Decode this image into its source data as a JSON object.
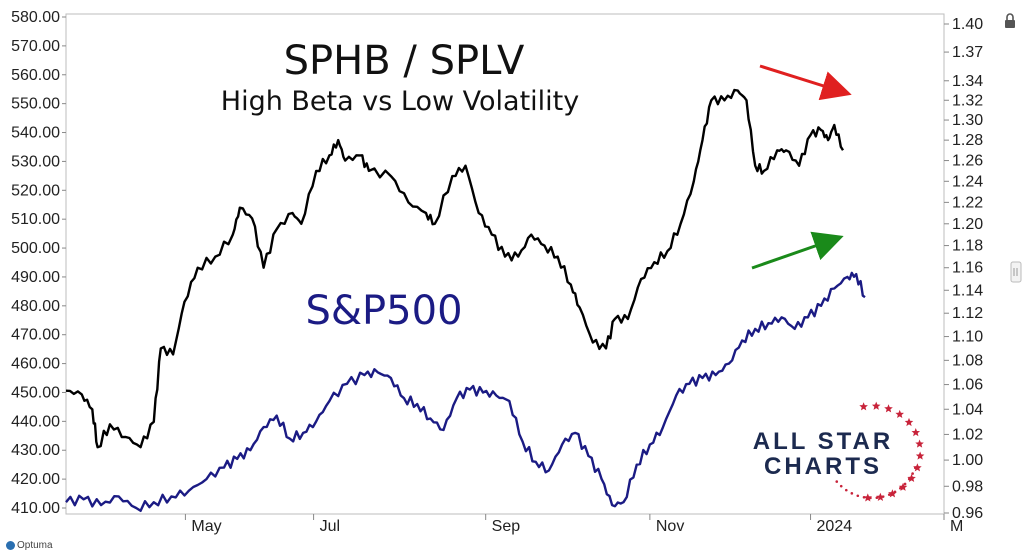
{
  "chart_data": {
    "type": "line",
    "title": "SPHB / SPLV",
    "subtitle": "High Beta vs Low Volatility",
    "series_label": "S&P500",
    "brand": {
      "line1": "ALL STAR",
      "line2": "CHARTS"
    },
    "footer": "Optuma",
    "x_labels": [
      {
        "t": 0.136,
        "label": "May"
      },
      {
        "t": 0.282,
        "label": "Jul"
      },
      {
        "t": 0.478,
        "label": "Sep"
      },
      {
        "t": 0.665,
        "label": "Nov"
      },
      {
        "t": 0.848,
        "label": "2024"
      },
      {
        "t": 1.0,
        "label": "M"
      }
    ],
    "left_axis": {
      "ylim": [
        410,
        580
      ],
      "ticks": [
        "410.00",
        "420.00",
        "430.00",
        "440.00",
        "450.00",
        "460.00",
        "470.00",
        "480.00",
        "490.00",
        "500.00",
        "510.00",
        "520.00",
        "530.00",
        "540.00",
        "550.00",
        "560.00",
        "570.00",
        "580.00"
      ]
    },
    "right_axis": {
      "ylim": [
        0.96,
        1.4
      ],
      "ticks": [
        "0.96",
        "0.98",
        "1.00",
        "1.02",
        "1.04",
        "1.06",
        "1.08",
        "1.10",
        "1.12",
        "1.14",
        "1.16",
        "1.18",
        "1.20",
        "1.22",
        "1.24",
        "1.26",
        "1.28",
        "1.30",
        "1.32",
        "1.34",
        "1.37",
        "1.40"
      ]
    },
    "series": [
      {
        "name": "SPHB / SPLV",
        "axis": "right",
        "color": "#000000",
        "points": [
          [
            0.0,
            1.055
          ],
          [
            0.018,
            1.052
          ],
          [
            0.03,
            1.04
          ],
          [
            0.036,
            1.01
          ],
          [
            0.05,
            1.028
          ],
          [
            0.068,
            1.018
          ],
          [
            0.085,
            1.01
          ],
          [
            0.1,
            1.03
          ],
          [
            0.108,
            1.09
          ],
          [
            0.122,
            1.085
          ],
          [
            0.135,
            1.13
          ],
          [
            0.15,
            1.16
          ],
          [
            0.17,
            1.17
          ],
          [
            0.19,
            1.19
          ],
          [
            0.198,
            1.215
          ],
          [
            0.212,
            1.205
          ],
          [
            0.225,
            1.16
          ],
          [
            0.24,
            1.195
          ],
          [
            0.258,
            1.21
          ],
          [
            0.268,
            1.2
          ],
          [
            0.285,
            1.25
          ],
          [
            0.3,
            1.265
          ],
          [
            0.31,
            1.28
          ],
          [
            0.318,
            1.26
          ],
          [
            0.335,
            1.265
          ],
          [
            0.345,
            1.25
          ],
          [
            0.37,
            1.245
          ],
          [
            0.39,
            1.22
          ],
          [
            0.41,
            1.21
          ],
          [
            0.42,
            1.2
          ],
          [
            0.44,
            1.245
          ],
          [
            0.455,
            1.255
          ],
          [
            0.47,
            1.21
          ],
          [
            0.485,
            1.19
          ],
          [
            0.5,
            1.17
          ],
          [
            0.515,
            1.17
          ],
          [
            0.53,
            1.19
          ],
          [
            0.545,
            1.18
          ],
          [
            0.56,
            1.17
          ],
          [
            0.575,
            1.145
          ],
          [
            0.585,
            1.125
          ],
          [
            0.6,
            1.095
          ],
          [
            0.615,
            1.09
          ],
          [
            0.625,
            1.115
          ],
          [
            0.64,
            1.115
          ],
          [
            0.655,
            1.15
          ],
          [
            0.67,
            1.165
          ],
          [
            0.685,
            1.175
          ],
          [
            0.7,
            1.2
          ],
          [
            0.715,
            1.24
          ],
          [
            0.725,
            1.28
          ],
          [
            0.735,
            1.32
          ],
          [
            0.75,
            1.32
          ],
          [
            0.765,
            1.33
          ],
          [
            0.775,
            1.32
          ],
          [
            0.785,
            1.255
          ],
          [
            0.795,
            1.25
          ],
          [
            0.81,
            1.27
          ],
          [
            0.82,
            1.27
          ],
          [
            0.835,
            1.255
          ],
          [
            0.848,
            1.285
          ],
          [
            0.86,
            1.29
          ],
          [
            0.868,
            1.28
          ],
          [
            0.875,
            1.295
          ],
          [
            0.885,
            1.27
          ]
        ]
      },
      {
        "name": "S&P500",
        "axis": "left",
        "color": "#1b1b84",
        "points": [
          [
            0.0,
            412
          ],
          [
            0.02,
            413
          ],
          [
            0.04,
            411
          ],
          [
            0.06,
            414
          ],
          [
            0.08,
            410
          ],
          [
            0.1,
            412
          ],
          [
            0.12,
            414
          ],
          [
            0.14,
            416
          ],
          [
            0.16,
            420
          ],
          [
            0.18,
            424
          ],
          [
            0.195,
            427
          ],
          [
            0.21,
            430
          ],
          [
            0.225,
            438
          ],
          [
            0.24,
            442
          ],
          [
            0.255,
            434
          ],
          [
            0.27,
            436
          ],
          [
            0.285,
            440
          ],
          [
            0.3,
            447
          ],
          [
            0.32,
            453
          ],
          [
            0.34,
            456
          ],
          [
            0.355,
            457
          ],
          [
            0.37,
            455
          ],
          [
            0.385,
            448
          ],
          [
            0.4,
            446
          ],
          [
            0.415,
            441
          ],
          [
            0.43,
            437
          ],
          [
            0.445,
            448
          ],
          [
            0.46,
            451
          ],
          [
            0.475,
            450
          ],
          [
            0.49,
            449
          ],
          [
            0.505,
            447
          ],
          [
            0.52,
            433
          ],
          [
            0.535,
            426
          ],
          [
            0.55,
            423
          ],
          [
            0.565,
            432
          ],
          [
            0.58,
            436
          ],
          [
            0.595,
            428
          ],
          [
            0.61,
            420
          ],
          [
            0.622,
            411
          ],
          [
            0.635,
            412
          ],
          [
            0.65,
            425
          ],
          [
            0.665,
            432
          ],
          [
            0.68,
            438
          ],
          [
            0.695,
            449
          ],
          [
            0.71,
            453
          ],
          [
            0.725,
            455
          ],
          [
            0.74,
            456
          ],
          [
            0.755,
            460
          ],
          [
            0.77,
            468
          ],
          [
            0.785,
            472
          ],
          [
            0.8,
            474
          ],
          [
            0.815,
            476
          ],
          [
            0.83,
            472
          ],
          [
            0.845,
            476
          ],
          [
            0.86,
            480
          ],
          [
            0.875,
            486
          ],
          [
            0.89,
            490
          ],
          [
            0.9,
            491
          ],
          [
            0.91,
            483
          ]
        ]
      }
    ],
    "annotations": [
      {
        "type": "arrow",
        "color": "#e02020",
        "direction": "down",
        "note": "divergence"
      },
      {
        "type": "arrow",
        "color": "#1a8a1a",
        "direction": "up",
        "note": "divergence"
      }
    ]
  }
}
